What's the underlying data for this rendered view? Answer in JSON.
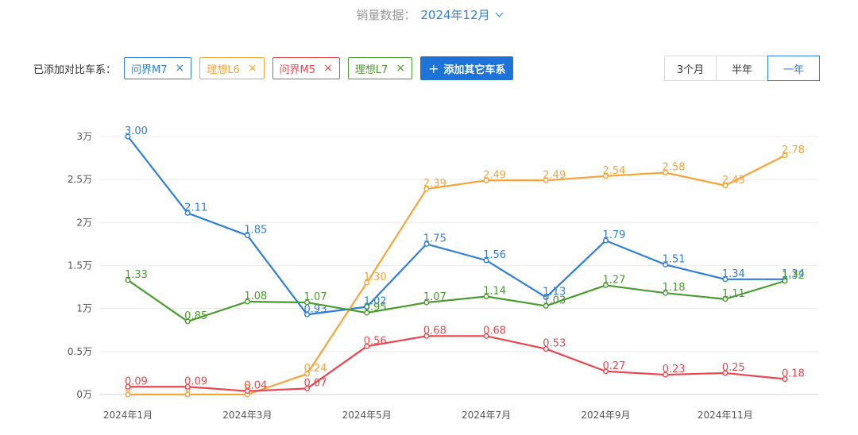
{
  "header": {
    "label": "销量数据：",
    "month": "2024年12月"
  },
  "compare": {
    "prefix": "已添加对比车系：",
    "chips": [
      {
        "name": "问界M7",
        "color": "#2f7ed8"
      },
      {
        "name": "理想L6",
        "color": "#f5a33b"
      },
      {
        "name": "问界M5",
        "color": "#e8474f"
      },
      {
        "name": "理想L7",
        "color": "#4a9c2f"
      }
    ],
    "add_label": "添加其它车系",
    "close_glyph": "×"
  },
  "range": {
    "options": [
      "3个月",
      "半年",
      "一年"
    ],
    "active": 2
  },
  "chart_data": {
    "type": "line",
    "categories": [
      "2024年1月",
      "2024年2月",
      "2024年3月",
      "2024年4月",
      "2024年5月",
      "2024年6月",
      "2024年7月",
      "2024年8月",
      "2024年9月",
      "2024年10月",
      "2024年11月",
      "2024年12月"
    ],
    "x_tick_labels": [
      "2024年1月",
      "",
      "2024年3月",
      "",
      "2024年5月",
      "",
      "2024年7月",
      "",
      "2024年9月",
      "",
      "2024年11月",
      ""
    ],
    "y_ticks": [
      0,
      0.5,
      1,
      1.5,
      2,
      2.5,
      3
    ],
    "y_tick_labels": [
      "0万",
      "0.5万",
      "1万",
      "1.5万",
      "2万",
      "2.5万",
      "3万"
    ],
    "ylim": [
      0,
      3
    ],
    "unit": "万",
    "grid": true,
    "series": [
      {
        "name": "问界M7",
        "color": "#2f7ed8",
        "values": [
          3.0,
          2.11,
          1.85,
          0.93,
          1.02,
          1.75,
          1.56,
          1.13,
          1.79,
          1.51,
          1.34,
          1.34
        ],
        "labels": [
          "3.00",
          "2.11",
          "1.85",
          "0.93",
          "1.02",
          "1.75",
          "1.56",
          "1.13",
          "1.79",
          "1.51",
          "1.34",
          "1.34"
        ]
      },
      {
        "name": "理想L6",
        "color": "#f5a33b",
        "values": [
          0,
          0,
          0,
          0.24,
          1.3,
          2.39,
          2.49,
          2.49,
          2.54,
          2.58,
          2.43,
          2.78
        ],
        "labels": [
          "0",
          "0",
          "0",
          "0.24",
          "1.30",
          "2.39",
          "2.49",
          "2.49",
          "2.54",
          "2.58",
          "2.43",
          "2.78"
        ]
      },
      {
        "name": "问界M5",
        "color": "#e8474f",
        "values": [
          0.09,
          0.09,
          0.04,
          0.07,
          0.56,
          0.68,
          0.68,
          0.53,
          0.27,
          0.23,
          0.25,
          0.18
        ],
        "labels": [
          "0.09",
          "0.09",
          "0.04",
          "0.07",
          "0.56",
          "0.68",
          "0.68",
          "0.53",
          "0.27",
          "0.23",
          "0.25",
          "0.18"
        ]
      },
      {
        "name": "理想L7",
        "color": "#4a9c2f",
        "values": [
          1.33,
          0.85,
          1.08,
          1.07,
          0.95,
          1.07,
          1.14,
          1.03,
          1.27,
          1.18,
          1.11,
          1.32
        ],
        "labels": [
          "1.33",
          "0.85",
          "1.08",
          "1.07",
          "0.95",
          "1.07",
          "1.14",
          "1.03",
          "1.27",
          "1.18",
          "1.11",
          "1.32"
        ]
      }
    ]
  }
}
